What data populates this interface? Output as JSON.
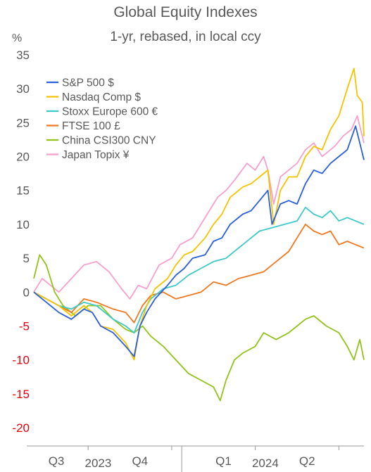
{
  "chart_data": {
    "type": "line",
    "title": "Global Equity Indexes",
    "subtitle": "1-yr, rebased, in local ccy",
    "y_unit": "%",
    "ylim": [
      -20,
      35
    ],
    "y_ticks": [
      35,
      30,
      25,
      20,
      15,
      10,
      5,
      0,
      -5,
      -10,
      -15,
      -20
    ],
    "x_ticks": [
      {
        "label": "Q3",
        "x": 0.12
      },
      {
        "label": "Q4",
        "x": 1.12
      },
      {
        "label": "Q1",
        "x": 2.12
      },
      {
        "label": "Q2",
        "x": 3.12
      }
    ],
    "year_labels": [
      {
        "label": "2023",
        "x": 0.62
      },
      {
        "label": "2024",
        "x": 2.62
      }
    ],
    "x_range": [
      -0.15,
      3.8
    ],
    "negative_tick_color": "#e8000b",
    "grid": false,
    "legend_position": "top-left",
    "series": [
      {
        "name": "S&P 500 $",
        "color": "#2b5fd9",
        "points": [
          [
            -0.15,
            0
          ],
          [
            0.0,
            -1.5
          ],
          [
            0.15,
            -3
          ],
          [
            0.3,
            -4
          ],
          [
            0.45,
            -2.5
          ],
          [
            0.55,
            -3
          ],
          [
            0.65,
            -5
          ],
          [
            0.8,
            -6
          ],
          [
            0.95,
            -8
          ],
          [
            1.05,
            -9.5
          ],
          [
            1.12,
            -5
          ],
          [
            1.2,
            -3
          ],
          [
            1.3,
            -1
          ],
          [
            1.45,
            1
          ],
          [
            1.55,
            2.5
          ],
          [
            1.65,
            3.5
          ],
          [
            1.75,
            5
          ],
          [
            1.9,
            5.5
          ],
          [
            2.0,
            7.5
          ],
          [
            2.1,
            8
          ],
          [
            2.2,
            10
          ],
          [
            2.35,
            11.5
          ],
          [
            2.45,
            12
          ],
          [
            2.55,
            13.5
          ],
          [
            2.65,
            15
          ],
          [
            2.7,
            10
          ],
          [
            2.8,
            13
          ],
          [
            2.9,
            13.5
          ],
          [
            3.0,
            13
          ],
          [
            3.1,
            16
          ],
          [
            3.2,
            18
          ],
          [
            3.3,
            17.5
          ],
          [
            3.4,
            19
          ],
          [
            3.5,
            20
          ],
          [
            3.6,
            21
          ],
          [
            3.7,
            24.5
          ],
          [
            3.75,
            22
          ],
          [
            3.8,
            19.5
          ]
        ]
      },
      {
        "name": "Nasdaq Comp $",
        "color": "#f5c400",
        "points": [
          [
            -0.15,
            0
          ],
          [
            0.0,
            -1
          ],
          [
            0.15,
            -2
          ],
          [
            0.3,
            -3.5
          ],
          [
            0.45,
            -2
          ],
          [
            0.55,
            -3
          ],
          [
            0.65,
            -5
          ],
          [
            0.8,
            -5.5
          ],
          [
            0.95,
            -7.5
          ],
          [
            1.05,
            -10
          ],
          [
            1.12,
            -5
          ],
          [
            1.2,
            -2
          ],
          [
            1.3,
            0.5
          ],
          [
            1.45,
            2
          ],
          [
            1.55,
            4
          ],
          [
            1.65,
            5.5
          ],
          [
            1.75,
            6
          ],
          [
            1.9,
            8
          ],
          [
            2.0,
            10
          ],
          [
            2.1,
            11.5
          ],
          [
            2.2,
            14
          ],
          [
            2.35,
            15.5
          ],
          [
            2.45,
            16
          ],
          [
            2.55,
            17
          ],
          [
            2.65,
            18
          ],
          [
            2.72,
            10
          ],
          [
            2.8,
            15
          ],
          [
            2.9,
            17
          ],
          [
            3.0,
            17
          ],
          [
            3.1,
            20
          ],
          [
            3.2,
            21.5
          ],
          [
            3.3,
            21
          ],
          [
            3.4,
            24
          ],
          [
            3.5,
            26
          ],
          [
            3.6,
            30
          ],
          [
            3.68,
            33
          ],
          [
            3.72,
            29
          ],
          [
            3.78,
            28
          ],
          [
            3.8,
            23
          ]
        ]
      },
      {
        "name": "Stoxx Europe 600 €",
        "color": "#3fc8c8",
        "points": [
          [
            -0.15,
            0
          ],
          [
            0.0,
            -1
          ],
          [
            0.15,
            -2
          ],
          [
            0.3,
            -2.5
          ],
          [
            0.45,
            -1.5
          ],
          [
            0.6,
            -2
          ],
          [
            0.8,
            -4
          ],
          [
            0.95,
            -5
          ],
          [
            1.05,
            -6
          ],
          [
            1.15,
            -3
          ],
          [
            1.25,
            -1
          ],
          [
            1.4,
            0.5
          ],
          [
            1.55,
            1
          ],
          [
            1.7,
            2.5
          ],
          [
            1.85,
            3.5
          ],
          [
            2.0,
            4.5
          ],
          [
            2.15,
            5
          ],
          [
            2.3,
            6.5
          ],
          [
            2.45,
            8
          ],
          [
            2.55,
            9
          ],
          [
            2.7,
            9.5
          ],
          [
            2.85,
            10
          ],
          [
            3.0,
            10.5
          ],
          [
            3.1,
            12.5
          ],
          [
            3.2,
            11.5
          ],
          [
            3.3,
            11
          ],
          [
            3.4,
            12
          ],
          [
            3.5,
            10.5
          ],
          [
            3.6,
            11
          ],
          [
            3.7,
            10.5
          ],
          [
            3.8,
            10
          ]
        ]
      },
      {
        "name": "FTSE 100 £",
        "color": "#f07820",
        "points": [
          [
            -0.15,
            0
          ],
          [
            0.0,
            -1
          ],
          [
            0.15,
            -2
          ],
          [
            0.3,
            -3
          ],
          [
            0.45,
            -1
          ],
          [
            0.6,
            -1.5
          ],
          [
            0.8,
            -2.5
          ],
          [
            0.95,
            -3
          ],
          [
            1.05,
            -4.5
          ],
          [
            1.15,
            -2
          ],
          [
            1.25,
            -0.5
          ],
          [
            1.4,
            0
          ],
          [
            1.55,
            -1
          ],
          [
            1.7,
            -0.5
          ],
          [
            1.85,
            0
          ],
          [
            2.0,
            1.5
          ],
          [
            2.15,
            1
          ],
          [
            2.3,
            2
          ],
          [
            2.45,
            2.5
          ],
          [
            2.6,
            3
          ],
          [
            2.75,
            4.5
          ],
          [
            2.9,
            6
          ],
          [
            3.0,
            8
          ],
          [
            3.1,
            10
          ],
          [
            3.2,
            9
          ],
          [
            3.3,
            8.5
          ],
          [
            3.4,
            9
          ],
          [
            3.5,
            7
          ],
          [
            3.6,
            7.5
          ],
          [
            3.7,
            7
          ],
          [
            3.8,
            6.5
          ]
        ]
      },
      {
        "name": "China CSI300 CNY",
        "color": "#92c31b",
        "points": [
          [
            -0.15,
            2
          ],
          [
            -0.08,
            5.5
          ],
          [
            0.0,
            4
          ],
          [
            0.1,
            0
          ],
          [
            0.2,
            -2
          ],
          [
            0.35,
            -3.5
          ],
          [
            0.5,
            -2
          ],
          [
            0.65,
            -2
          ],
          [
            0.8,
            -4
          ],
          [
            0.95,
            -5.5
          ],
          [
            1.05,
            -6
          ],
          [
            1.15,
            -5
          ],
          [
            1.25,
            -6.5
          ],
          [
            1.4,
            -8
          ],
          [
            1.55,
            -10
          ],
          [
            1.7,
            -12
          ],
          [
            1.85,
            -13
          ],
          [
            2.0,
            -14
          ],
          [
            2.08,
            -16
          ],
          [
            2.15,
            -13
          ],
          [
            2.25,
            -10
          ],
          [
            2.35,
            -9
          ],
          [
            2.5,
            -8
          ],
          [
            2.6,
            -6
          ],
          [
            2.75,
            -7
          ],
          [
            2.9,
            -6
          ],
          [
            3.0,
            -5
          ],
          [
            3.1,
            -4
          ],
          [
            3.2,
            -3.5
          ],
          [
            3.35,
            -5
          ],
          [
            3.5,
            -6
          ],
          [
            3.6,
            -8
          ],
          [
            3.68,
            -10
          ],
          [
            3.75,
            -7
          ],
          [
            3.8,
            -10
          ]
        ]
      },
      {
        "name": "Japan Topix ¥",
        "color": "#f5a0cd",
        "points": [
          [
            -0.15,
            0
          ],
          [
            -0.05,
            2
          ],
          [
            0.05,
            1
          ],
          [
            0.15,
            0
          ],
          [
            0.3,
            2
          ],
          [
            0.45,
            4
          ],
          [
            0.6,
            4.5
          ],
          [
            0.75,
            3
          ],
          [
            0.9,
            0.5
          ],
          [
            1.0,
            -1
          ],
          [
            1.1,
            1
          ],
          [
            1.2,
            0.5
          ],
          [
            1.35,
            4
          ],
          [
            1.5,
            5
          ],
          [
            1.6,
            7
          ],
          [
            1.75,
            8
          ],
          [
            1.85,
            10
          ],
          [
            1.95,
            12
          ],
          [
            2.05,
            14
          ],
          [
            2.15,
            15
          ],
          [
            2.25,
            16.5
          ],
          [
            2.4,
            19
          ],
          [
            2.5,
            18
          ],
          [
            2.6,
            20
          ],
          [
            2.65,
            18
          ],
          [
            2.72,
            13
          ],
          [
            2.8,
            17
          ],
          [
            2.9,
            18
          ],
          [
            3.0,
            19
          ],
          [
            3.1,
            21
          ],
          [
            3.2,
            22
          ],
          [
            3.3,
            20
          ],
          [
            3.45,
            21.5
          ],
          [
            3.55,
            23
          ],
          [
            3.65,
            24
          ],
          [
            3.72,
            26
          ],
          [
            3.8,
            22
          ]
        ]
      }
    ]
  }
}
